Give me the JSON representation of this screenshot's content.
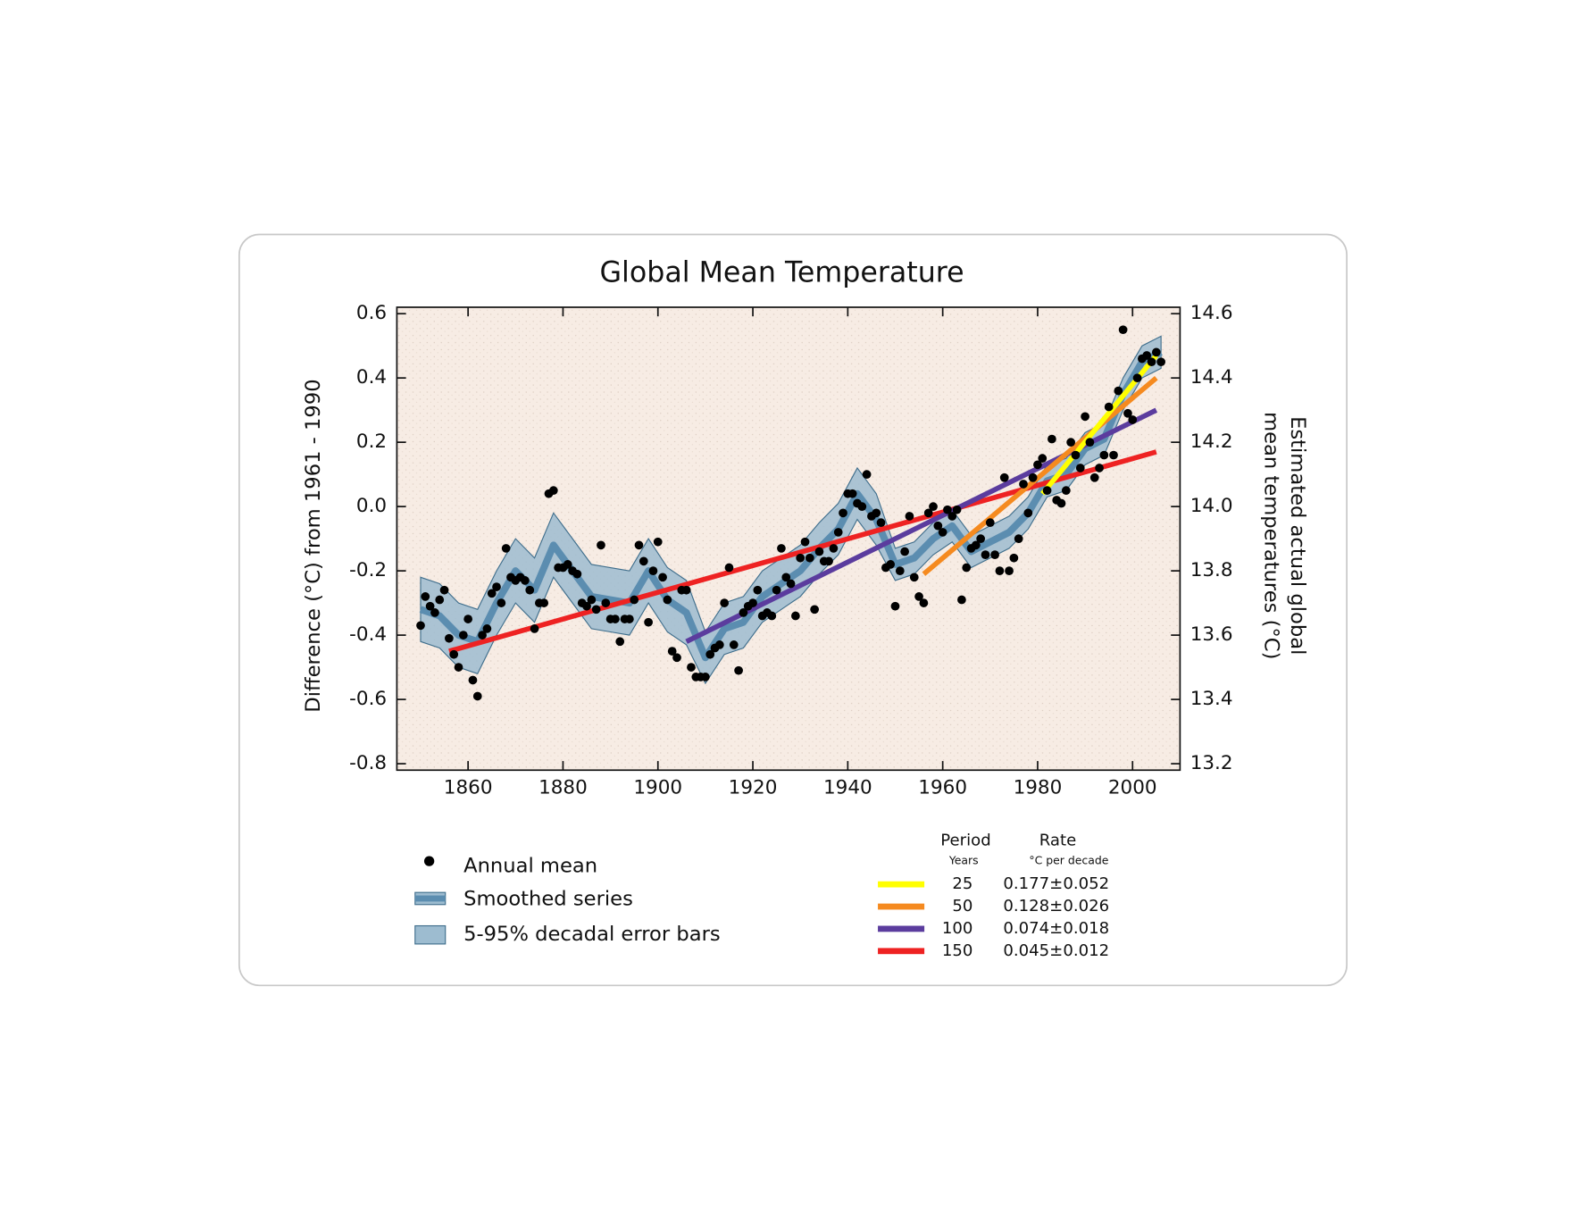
{
  "chart_data": {
    "type": "line",
    "title": "Global Mean Temperature",
    "ylabel": "Difference (°C) from 1961 - 1990",
    "y2label": [
      "Estimated actual global",
      "mean temperatures (°C)"
    ],
    "xlim": [
      1845,
      2010
    ],
    "ylim": [
      -0.82,
      0.62
    ],
    "y2lim": [
      13.18,
      14.62
    ],
    "xticks": [
      1860,
      1880,
      1900,
      1920,
      1940,
      1960,
      1980,
      2000
    ],
    "yticks": [
      -0.8,
      -0.6,
      -0.4,
      -0.2,
      {
        "value": 0,
        "label": "0.0"
      },
      0.2,
      0.4,
      0.6
    ],
    "y2ticks": [
      13.2,
      13.4,
      13.6,
      13.8,
      {
        "value": 14,
        "label": "14.0"
      },
      14.2,
      14.4,
      14.6
    ],
    "series": [
      {
        "name": "Annual mean",
        "color": "#000000",
        "x": [
          1850,
          1851,
          1852,
          1853,
          1854,
          1855,
          1856,
          1857,
          1858,
          1859,
          1860,
          1861,
          1862,
          1863,
          1864,
          1865,
          1866,
          1867,
          1868,
          1869,
          1870,
          1871,
          1872,
          1873,
          1874,
          1875,
          1876,
          1877,
          1878,
          1879,
          1880,
          1881,
          1882,
          1883,
          1884,
          1885,
          1886,
          1887,
          1888,
          1889,
          1890,
          1891,
          1892,
          1893,
          1894,
          1895,
          1896,
          1897,
          1898,
          1899,
          1900,
          1901,
          1902,
          1903,
          1904,
          1905,
          1906,
          1907,
          1908,
          1909,
          1910,
          1911,
          1912,
          1913,
          1914,
          1915,
          1916,
          1917,
          1918,
          1919,
          1920,
          1921,
          1922,
          1923,
          1924,
          1925,
          1926,
          1927,
          1928,
          1929,
          1930,
          1931,
          1932,
          1933,
          1934,
          1935,
          1936,
          1937,
          1938,
          1939,
          1940,
          1941,
          1942,
          1943,
          1944,
          1945,
          1946,
          1947,
          1948,
          1949,
          1950,
          1951,
          1952,
          1953,
          1954,
          1955,
          1956,
          1957,
          1958,
          1959,
          1960,
          1961,
          1962,
          1963,
          1964,
          1965,
          1966,
          1967,
          1968,
          1969,
          1970,
          1971,
          1972,
          1973,
          1974,
          1975,
          1976,
          1977,
          1978,
          1979,
          1980,
          1981,
          1982,
          1983,
          1984,
          1985,
          1986,
          1987,
          1988,
          1989,
          1990,
          1991,
          1992,
          1993,
          1994,
          1995,
          1996,
          1997,
          1998,
          1999,
          2000,
          2001,
          2002,
          2003,
          2004,
          2005,
          2006
        ],
        "values": [
          -0.37,
          -0.28,
          -0.31,
          -0.33,
          -0.29,
          -0.26,
          -0.41,
          -0.46,
          -0.5,
          -0.4,
          -0.35,
          -0.54,
          -0.59,
          -0.4,
          -0.38,
          -0.27,
          -0.25,
          -0.3,
          -0.13,
          -0.22,
          -0.23,
          -0.22,
          -0.23,
          -0.26,
          -0.38,
          -0.3,
          -0.3,
          0.04,
          0.05,
          -0.19,
          -0.19,
          -0.18,
          -0.2,
          -0.21,
          -0.3,
          -0.31,
          -0.29,
          -0.32,
          -0.12,
          -0.3,
          -0.35,
          -0.35,
          -0.42,
          -0.35,
          -0.35,
          -0.29,
          -0.12,
          -0.17,
          -0.36,
          -0.2,
          -0.11,
          -0.22,
          -0.29,
          -0.45,
          -0.47,
          -0.26,
          -0.26,
          -0.5,
          -0.53,
          -0.53,
          -0.53,
          -0.46,
          -0.44,
          -0.43,
          -0.3,
          -0.19,
          -0.43,
          -0.51,
          -0.33,
          -0.31,
          -0.3,
          -0.26,
          -0.34,
          -0.33,
          -0.34,
          -0.26,
          -0.13,
          -0.22,
          -0.24,
          -0.34,
          -0.16,
          -0.11,
          -0.16,
          -0.32,
          -0.14,
          -0.17,
          -0.17,
          -0.13,
          -0.08,
          -0.02,
          0.04,
          0.04,
          0.01,
          0.0,
          0.1,
          -0.03,
          -0.02,
          -0.05,
          -0.19,
          -0.18,
          -0.31,
          -0.2,
          -0.14,
          -0.03,
          -0.22,
          -0.28,
          -0.3,
          -0.02,
          0.0,
          -0.06,
          -0.08,
          -0.01,
          -0.03,
          -0.01,
          -0.29,
          -0.19,
          -0.13,
          -0.12,
          -0.1,
          -0.15,
          -0.05,
          -0.15,
          -0.2,
          0.09,
          -0.2,
          -0.16,
          -0.1,
          0.07,
          -0.02,
          0.09,
          0.13,
          0.15,
          0.05,
          0.21,
          0.02,
          0.01,
          0.05,
          0.2,
          0.16,
          0.12,
          0.28,
          0.2,
          0.09,
          0.12,
          0.16,
          0.31,
          0.16,
          0.36,
          0.55,
          0.29,
          0.27,
          0.4,
          0.46,
          0.47,
          0.45,
          0.48,
          0.45
        ]
      },
      {
        "name": "Smoothed series",
        "color": "#5b8db0",
        "x": [
          1850,
          1854,
          1858,
          1862,
          1866,
          1870,
          1874,
          1878,
          1882,
          1886,
          1890,
          1894,
          1898,
          1902,
          1906,
          1910,
          1914,
          1918,
          1922,
          1926,
          1930,
          1934,
          1938,
          1942,
          1946,
          1950,
          1954,
          1958,
          1962,
          1966,
          1970,
          1974,
          1978,
          1982,
          1986,
          1990,
          1994,
          1998,
          2002,
          2006
        ],
        "values": [
          -0.32,
          -0.34,
          -0.4,
          -0.42,
          -0.3,
          -0.2,
          -0.26,
          -0.12,
          -0.2,
          -0.28,
          -0.29,
          -0.3,
          -0.2,
          -0.29,
          -0.33,
          -0.47,
          -0.38,
          -0.36,
          -0.28,
          -0.24,
          -0.2,
          -0.13,
          -0.07,
          0.04,
          -0.04,
          -0.18,
          -0.16,
          -0.1,
          -0.06,
          -0.14,
          -0.11,
          -0.08,
          -0.02,
          0.08,
          0.1,
          0.18,
          0.21,
          0.35,
          0.45,
          0.48
        ]
      },
      {
        "name": "5-95% decadal error bars",
        "color": "#9dbcd0",
        "x": [
          1850,
          1854,
          1858,
          1862,
          1866,
          1870,
          1874,
          1878,
          1882,
          1886,
          1890,
          1894,
          1898,
          1902,
          1906,
          1910,
          1914,
          1918,
          1922,
          1926,
          1930,
          1934,
          1938,
          1942,
          1946,
          1950,
          1954,
          1958,
          1962,
          1966,
          1970,
          1974,
          1978,
          1982,
          1986,
          1990,
          1994,
          1998,
          2002,
          2006
        ],
        "lower": [
          -0.42,
          -0.44,
          -0.5,
          -0.52,
          -0.4,
          -0.3,
          -0.36,
          -0.22,
          -0.3,
          -0.38,
          -0.39,
          -0.4,
          -0.3,
          -0.39,
          -0.43,
          -0.55,
          -0.46,
          -0.44,
          -0.36,
          -0.32,
          -0.28,
          -0.21,
          -0.15,
          -0.04,
          -0.12,
          -0.23,
          -0.21,
          -0.15,
          -0.11,
          -0.19,
          -0.16,
          -0.13,
          -0.07,
          0.03,
          0.05,
          0.13,
          0.16,
          0.3,
          0.4,
          0.43
        ],
        "upper": [
          -0.22,
          -0.24,
          -0.3,
          -0.32,
          -0.2,
          -0.1,
          -0.16,
          -0.02,
          -0.1,
          -0.18,
          -0.19,
          -0.2,
          -0.1,
          -0.19,
          -0.23,
          -0.39,
          -0.3,
          -0.28,
          -0.2,
          -0.16,
          -0.12,
          -0.05,
          0.01,
          0.12,
          0.04,
          -0.13,
          -0.11,
          -0.05,
          -0.01,
          -0.09,
          -0.06,
          -0.03,
          0.03,
          0.13,
          0.15,
          0.23,
          0.26,
          0.4,
          0.5,
          0.53
        ]
      }
    ],
    "trends": {
      "period_header": "Period",
      "rate_header": "Rate",
      "period_unit": "Years",
      "rate_unit": "°C  per decade",
      "items": [
        {
          "period": 25,
          "rate": "0.177±0.052",
          "color": "#ffff00",
          "x": [
            1981,
            2005
          ],
          "values": [
            0.04,
            0.47
          ]
        },
        {
          "period": 50,
          "rate": "0.128±0.026",
          "color": "#f58a1f",
          "x": [
            1956,
            2005
          ],
          "values": [
            -0.21,
            0.4
          ]
        },
        {
          "period": 100,
          "rate": "0.074±0.018",
          "color": "#5b3c9e",
          "x": [
            1906,
            2005
          ],
          "values": [
            -0.42,
            0.3
          ]
        },
        {
          "period": 150,
          "rate": "0.045±0.012",
          "color": "#ee2222",
          "x": [
            1856,
            2005
          ],
          "values": [
            -0.45,
            0.17
          ]
        }
      ]
    }
  }
}
